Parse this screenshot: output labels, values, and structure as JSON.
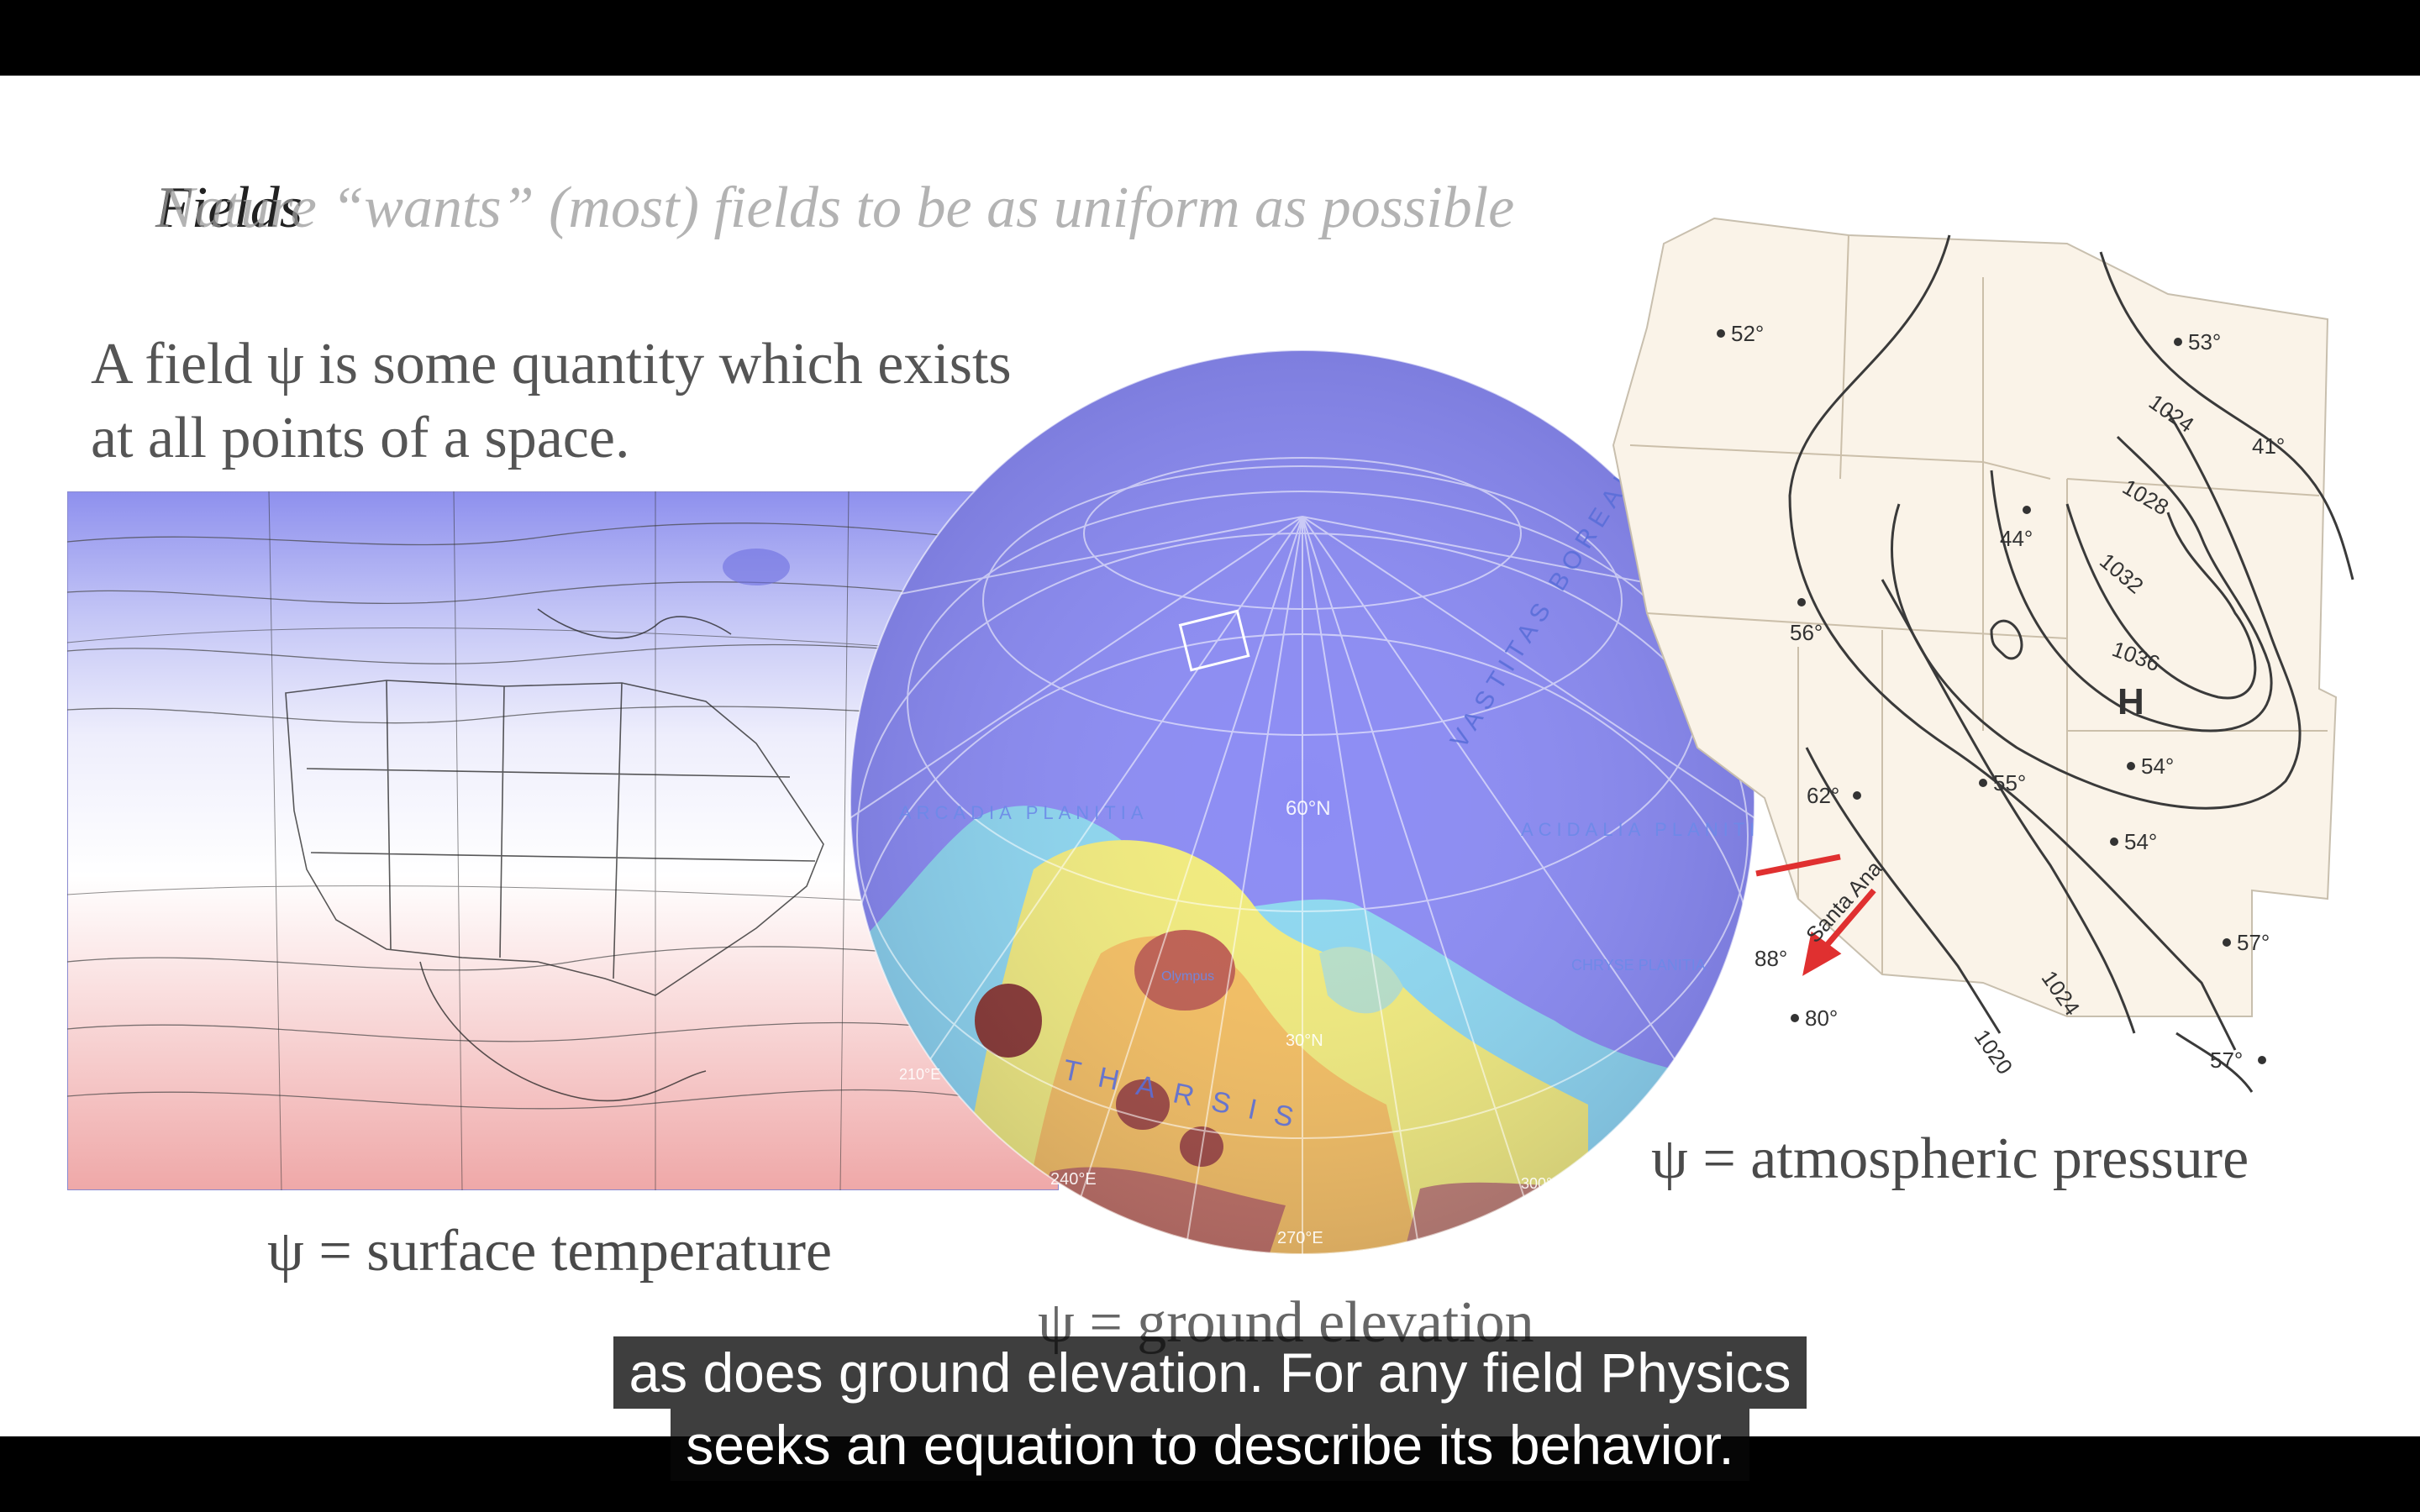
{
  "slide": {
    "title": "Fields",
    "overlay_title": "Nature “wants” (most) fields to be as uniform as possible",
    "definition_line1": "A field ψ is some quantity which exists",
    "definition_line2": "at all points of a space."
  },
  "captions": {
    "temperature": "ψ = surface temperature",
    "elevation": "ψ = ground elevation",
    "pressure": "ψ = atmospheric pressure"
  },
  "globe": {
    "labels": [
      "VASTITAS BOREALIS",
      "ARCADIA PLANITIA",
      "ACIDALIA PLANITIA",
      "THARSIS",
      "CHRYSE PLANITIA",
      "Olympus",
      "60°N",
      "30°N",
      "240°E",
      "270°E",
      "210°E",
      "300°E"
    ]
  },
  "pressure_map": {
    "temps": [
      "52°",
      "53°",
      "41°",
      "44°",
      "56°",
      "62°",
      "55°",
      "54°",
      "54°",
      "57°",
      "88°",
      "80°",
      "57°"
    ],
    "isobars": [
      "1024",
      "1028",
      "1032",
      "1036",
      "1024",
      "1020"
    ],
    "high": "H",
    "wind": "Santa Ana"
  },
  "subtitles": {
    "line1": "as does ground elevation. For any field Physics",
    "line2": "seeks an equation to describe its behavior."
  },
  "colors": {
    "cold": "#8a8cf0",
    "warm": "#f0a0a0",
    "arrow": "#e03030",
    "subtitle_bg": "#141414"
  }
}
